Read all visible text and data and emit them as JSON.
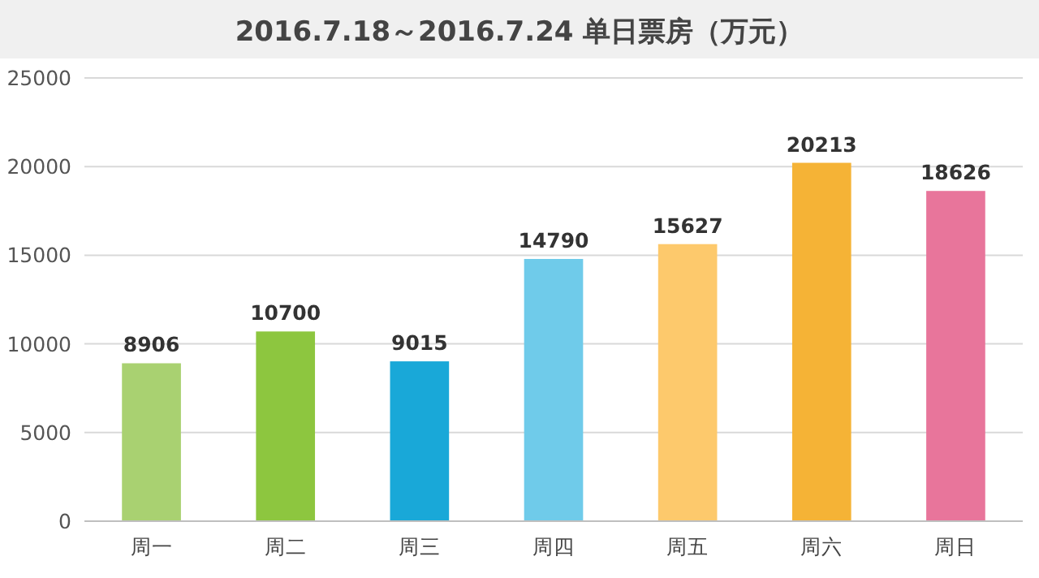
{
  "chart_data": {
    "type": "bar",
    "title": "2016.7.18～2016.7.24 单日票房（万元）",
    "categories": [
      "周一",
      "周二",
      "周三",
      "周四",
      "周五",
      "周六",
      "周日"
    ],
    "values": [
      8906,
      10700,
      9015,
      14790,
      15627,
      20213,
      18626
    ],
    "colors": [
      "#a9d171",
      "#8dc63f",
      "#19a8d8",
      "#6fcbea",
      "#fdc96c",
      "#f5b336",
      "#e8759b"
    ],
    "ylim": [
      0,
      25000
    ],
    "yticks": [
      0,
      5000,
      10000,
      15000,
      20000,
      25000
    ],
    "grid": "y",
    "data_labels": true
  }
}
